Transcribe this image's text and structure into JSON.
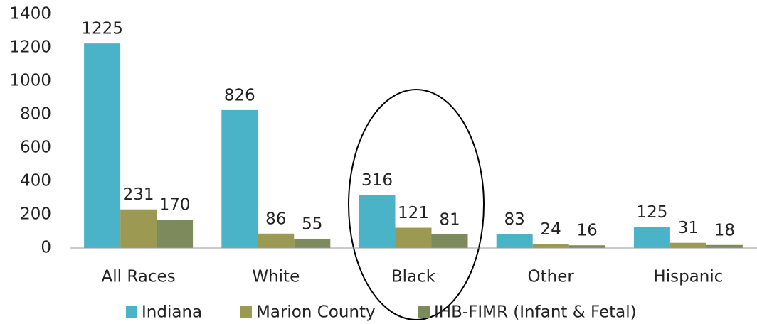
{
  "chart_data": {
    "type": "bar",
    "categories": [
      "All Races",
      "White",
      "Black",
      "Other",
      "Hispanic"
    ],
    "series": [
      {
        "name": "Indiana",
        "color": "#4bb3c8",
        "values": [
          1225,
          826,
          316,
          83,
          125
        ]
      },
      {
        "name": "Marion County",
        "color": "#9c9a52",
        "values": [
          231,
          86,
          121,
          24,
          31
        ]
      },
      {
        "name": "IHB-FIMR (Infant & Fetal)",
        "color": "#7d8a5c",
        "values": [
          170,
          55,
          81,
          16,
          18
        ]
      }
    ],
    "ylim": [
      0,
      1400
    ],
    "yticks": [
      0,
      200,
      400,
      600,
      800,
      1000,
      1200,
      1400
    ],
    "legend": "bottom"
  }
}
